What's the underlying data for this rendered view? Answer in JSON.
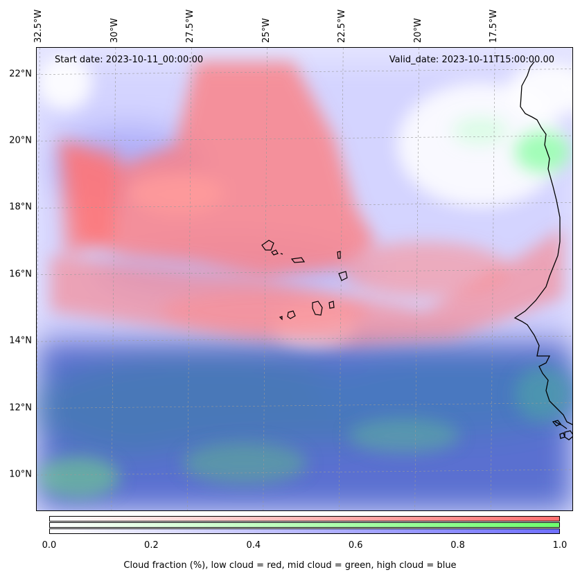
{
  "header": {
    "start_date": "Start date: 2023-10-11_00:00:00",
    "valid_date": "Valid_date: 2023-10-11T15:00:00.00"
  },
  "map": {
    "lon_labels": [
      {
        "value": -32.5,
        "text": "32.5°W"
      },
      {
        "value": -30.0,
        "text": "30°W"
      },
      {
        "value": -27.5,
        "text": "27.5°W"
      },
      {
        "value": -25.0,
        "text": "25°W"
      },
      {
        "value": -22.5,
        "text": "22.5°W"
      },
      {
        "value": -20.0,
        "text": "20°W"
      },
      {
        "value": -17.5,
        "text": "17.5°W"
      }
    ],
    "lat_labels": [
      {
        "value": 22,
        "text": "22°N"
      },
      {
        "value": 20,
        "text": "20°N"
      },
      {
        "value": 18,
        "text": "18°N"
      },
      {
        "value": 16,
        "text": "16°N"
      },
      {
        "value": 14,
        "text": "14°N"
      },
      {
        "value": 12,
        "text": "12°N"
      },
      {
        "value": 10,
        "text": "10°N"
      }
    ],
    "lon_range": [
      -32.6,
      -14.9
    ],
    "lat_range": [
      8.9,
      22.8
    ]
  },
  "colorbar": {
    "ticks": [
      "0.0",
      "0.2",
      "0.4",
      "0.6",
      "0.8",
      "1.0"
    ],
    "label": "Cloud fraction (%), low cloud = red, mid cloud = green, high cloud = blue",
    "colors": {
      "low": "#ff6f6f",
      "mid": "#6fff6f",
      "high": "#6f6fff"
    }
  }
}
